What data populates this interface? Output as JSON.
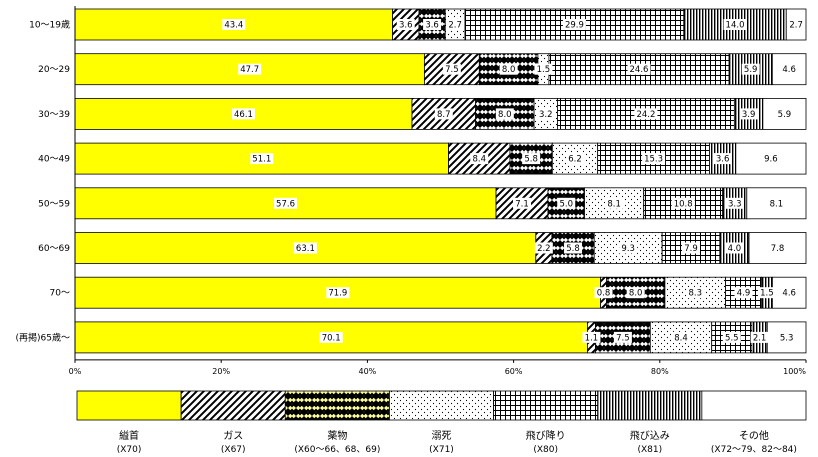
{
  "chart_data": {
    "type": "bar",
    "orientation": "horizontal",
    "stacked": "percent",
    "categories": [
      "10～19歳",
      "20～29",
      "30～39",
      "40～49",
      "50～59",
      "60～69",
      "70～",
      "(再掲)65歳～"
    ],
    "xlim": [
      0,
      100
    ],
    "xticks": [
      "0%",
      "20%",
      "40%",
      "60%",
      "80%",
      "100%"
    ],
    "grid": false,
    "legend_position": "bottom",
    "series": [
      {
        "name": "縊首",
        "code": "(X70)",
        "pattern": "solid-yellow",
        "values": [
          43.4,
          47.7,
          46.1,
          51.1,
          57.6,
          63.1,
          71.9,
          70.1
        ]
      },
      {
        "name": "ガス",
        "code": "(X67)",
        "pattern": "diagonal",
        "values": [
          3.6,
          7.5,
          8.7,
          8.4,
          7.1,
          2.2,
          0.8,
          1.1
        ]
      },
      {
        "name": "薬物",
        "code": "(X60～66、68、69)",
        "pattern": "diamond",
        "values": [
          3.6,
          8.0,
          8.0,
          5.8,
          5.0,
          5.8,
          8.0,
          7.5
        ]
      },
      {
        "name": "溺死",
        "code": "(X71)",
        "pattern": "dots",
        "values": [
          2.7,
          1.5,
          3.2,
          6.2,
          8.1,
          9.3,
          8.3,
          8.4
        ]
      },
      {
        "name": "飛び降り",
        "code": "(X80)",
        "pattern": "grid",
        "values": [
          29.9,
          24.6,
          24.2,
          15.3,
          10.8,
          7.9,
          4.9,
          5.5
        ]
      },
      {
        "name": "飛び込み",
        "code": "(X81)",
        "pattern": "vertical",
        "values": [
          14.0,
          5.9,
          3.9,
          3.6,
          3.3,
          4.0,
          1.5,
          2.1
        ]
      },
      {
        "name": "その他",
        "code": "(X72～79、82～84)",
        "pattern": "white",
        "values": [
          2.7,
          4.6,
          5.9,
          9.6,
          8.1,
          7.8,
          4.6,
          5.3
        ]
      }
    ],
    "value_labels": [
      [
        "43.4",
        "3.6",
        "3.6",
        "2.7",
        "29.9",
        "14.0",
        "2.7"
      ],
      [
        "47.7",
        "7.5",
        "8.0",
        "1.5",
        "24.6",
        "5.9",
        "4.6"
      ],
      [
        "46.1",
        "8.7",
        "8.0",
        "3.2",
        "24.2",
        "3.9",
        "5.9"
      ],
      [
        "51.1",
        "8.4",
        "5.8",
        "6.2",
        "15.3",
        "3.6",
        "9.6"
      ],
      [
        "57.6",
        "7.1",
        "5.0",
        "8.1",
        "10.8",
        "3.3",
        "8.1"
      ],
      [
        "63.1",
        "2.2",
        "5.8",
        "9.3",
        "7.9",
        "4.0",
        "7.8"
      ],
      [
        "71.9",
        "0.8",
        "8.0",
        "8.3",
        "4.9",
        "1.5",
        "4.6"
      ],
      [
        "70.1",
        "1.1",
        "7.5",
        "8.4",
        "5.5",
        "2.1",
        "5.3"
      ]
    ],
    "colors": {
      "yellow": "#ffff00",
      "ink": "#000000",
      "background": "#ffffff"
    }
  }
}
